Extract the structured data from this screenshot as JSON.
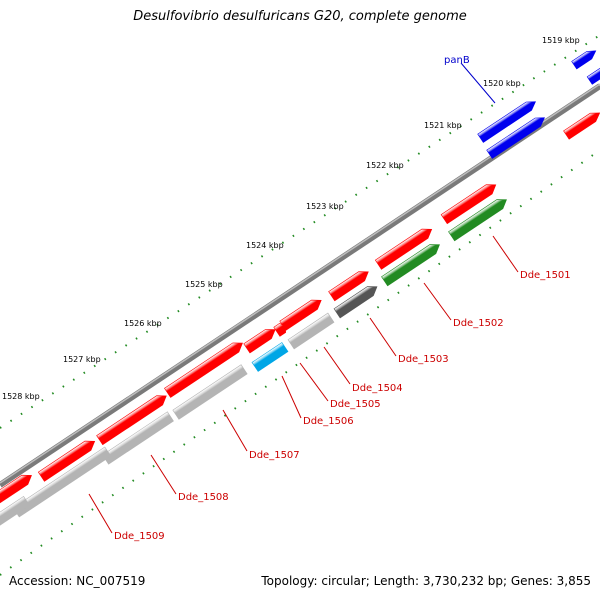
{
  "title": "Desulfovibrio desulfuricans G20, complete genome",
  "footer": {
    "accession": "Accession: NC_007519",
    "topology": "Topology: circular; Length: 3,730,232 bp; Genes: 3,855"
  },
  "colors": {
    "forward_gene": "#ff0000",
    "reverse_gene": "#b4b4b4",
    "forward_gene_dark": "#dd0000",
    "reverse_gene_dark": "#a4a4a4",
    "pan_genes": "#0000ee",
    "green_genes": "#228b22",
    "cyan_gene": "#00a6e6",
    "dark_gene": "#555555",
    "backbone": "#7a7a7a",
    "ticks": "#228b22",
    "gene_label": "#cc0000",
    "pan_label": "#0000cc"
  },
  "kbp_labels": [
    "1519 kbp",
    "1520 kbp",
    "1521 kbp",
    "1522 kbp",
    "1523 kbp",
    "1524 kbp",
    "1525 kbp",
    "1526 kbp",
    "1527 kbp",
    "1528 kbp"
  ],
  "gene_labels": [
    {
      "text": "panB",
      "kind": "pan"
    },
    {
      "text": "Dde_1501",
      "kind": "gene"
    },
    {
      "text": "Dde_1502",
      "kind": "gene"
    },
    {
      "text": "Dde_1503",
      "kind": "gene"
    },
    {
      "text": "Dde_1504",
      "kind": "gene"
    },
    {
      "text": "Dde_1505",
      "kind": "gene"
    },
    {
      "text": "Dde_1506",
      "kind": "gene"
    },
    {
      "text": "Dde_1507",
      "kind": "gene"
    },
    {
      "text": "Dde_1508",
      "kind": "gene"
    },
    {
      "text": "Dde_1509",
      "kind": "gene"
    }
  ]
}
